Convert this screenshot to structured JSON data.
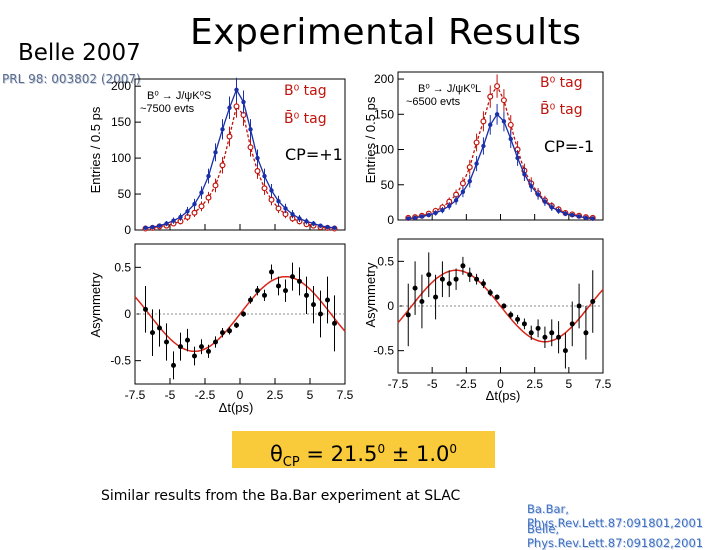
{
  "slide": {
    "title": "Experimental Results",
    "experiment": "Belle 2007",
    "reference_top": "PRL 98: 003802 (2007)",
    "result_text": "θCP = 21.50 ± 1.00",
    "result_theta": "θ",
    "result_sub": "CP",
    "result_eq": " = 21.5",
    "result_sup1": "0",
    "result_pm": " ± 1.0",
    "result_sup2": "0",
    "caption": "Similar results from the Ba.Bar experiment at SLAC",
    "references": [
      "Ba.Bar, Phys.Rev.Lett.87:091801,2001",
      "Belle, Phys.Rev.Lett.87:091802,2001"
    ]
  },
  "left_panel": {
    "decay": "B⁰ → J/ψK⁰S",
    "events": "~7500 evts",
    "tag1": "B⁰ tag",
    "tag2": "B̄⁰ tag",
    "cp_label": "CP=+1",
    "ylabel_top": "Entries / 0.5 ps",
    "ylabel_bottom": "Asymmetry",
    "xlabel": "Δt(ps)"
  },
  "right_panel": {
    "decay": "B⁰ → J/ψK⁰L",
    "events": "~6500 evts",
    "tag1": "B⁰ tag",
    "tag2": "B̄⁰ tag",
    "cp_label": "CP=-1",
    "ylabel_top": "Entries / 0.5 ps",
    "ylabel_bottom": "Asymmetry",
    "xlabel": "Δt(ps)"
  },
  "colors": {
    "b0_tag": "#c0140c",
    "b0bar_tag": "#1a2fa8",
    "highlight": "#f9cb3a",
    "reference": "#3e6fbf"
  },
  "chart_data": [
    {
      "type": "scatter",
      "name": "left-entries",
      "xlim": [
        -7.5,
        7.5
      ],
      "ylim": [
        0,
        210
      ],
      "yticks": [
        0,
        50,
        100,
        150,
        200
      ],
      "series": [
        {
          "name": "B⁰ tag",
          "color": "#c0140c",
          "x": [
            -6.75,
            -6.25,
            -5.75,
            -5.25,
            -4.75,
            -4.25,
            -3.75,
            -3.25,
            -2.75,
            -2.25,
            -1.75,
            -1.25,
            -0.75,
            -0.25,
            0.25,
            0.75,
            1.25,
            1.75,
            2.25,
            2.75,
            3.25,
            3.75,
            4.25,
            4.75,
            5.25,
            5.75,
            6.25,
            6.75
          ],
          "y": [
            2,
            3,
            5,
            6,
            9,
            12,
            18,
            24,
            33,
            45,
            62,
            90,
            130,
            172,
            160,
            115,
            82,
            58,
            42,
            30,
            22,
            16,
            12,
            8,
            6,
            4,
            3,
            2
          ]
        },
        {
          "name": "B̄⁰ tag",
          "color": "#1a2fa8",
          "x": [
            -6.75,
            -6.25,
            -5.75,
            -5.25,
            -4.75,
            -4.25,
            -3.75,
            -3.25,
            -2.75,
            -2.25,
            -1.75,
            -1.25,
            -0.75,
            -0.25,
            0.25,
            0.75,
            1.25,
            1.75,
            2.25,
            2.75,
            3.25,
            3.75,
            4.25,
            4.75,
            5.25,
            5.75,
            6.25,
            6.75
          ],
          "y": [
            3,
            4,
            6,
            9,
            13,
            18,
            26,
            36,
            52,
            75,
            108,
            140,
            170,
            195,
            178,
            140,
            100,
            75,
            55,
            40,
            30,
            22,
            16,
            12,
            9,
            6,
            4,
            3
          ]
        }
      ]
    },
    {
      "type": "scatter",
      "name": "left-asymmetry",
      "xlim": [
        -7.5,
        7.5
      ],
      "ylim": [
        -0.75,
        0.75
      ],
      "yticks": [
        -0.5,
        0,
        0.5
      ],
      "series": [
        {
          "name": "asymmetry",
          "x": [
            -6.75,
            -6.25,
            -5.75,
            -5.25,
            -4.75,
            -4.25,
            -3.75,
            -3.25,
            -2.75,
            -2.25,
            -1.75,
            -1.25,
            -0.75,
            -0.25,
            0.25,
            0.75,
            1.25,
            1.75,
            2.25,
            2.75,
            3.25,
            3.75,
            4.25,
            4.75,
            5.25,
            5.75,
            6.25,
            6.75
          ],
          "y": [
            0.05,
            -0.2,
            -0.15,
            -0.3,
            -0.55,
            -0.35,
            -0.28,
            -0.45,
            -0.35,
            -0.4,
            -0.3,
            -0.2,
            -0.18,
            -0.12,
            0.0,
            0.15,
            0.25,
            0.2,
            0.45,
            0.3,
            0.25,
            0.4,
            0.35,
            0.2,
            0.1,
            0.0,
            0.15,
            -0.1
          ],
          "err": [
            0.25,
            0.25,
            0.2,
            0.2,
            0.15,
            0.15,
            0.12,
            0.1,
            0.08,
            0.07,
            0.06,
            0.05,
            0.04,
            0.03,
            0.03,
            0.04,
            0.05,
            0.06,
            0.08,
            0.1,
            0.12,
            0.15,
            0.15,
            0.2,
            0.2,
            0.25,
            0.25,
            0.3
          ]
        }
      ]
    },
    {
      "type": "scatter",
      "name": "right-entries",
      "xlim": [
        -7.5,
        7.5
      ],
      "ylim": [
        0,
        210
      ],
      "yticks": [
        0,
        50,
        100,
        150,
        200
      ],
      "series": [
        {
          "name": "B⁰ tag",
          "color": "#c0140c",
          "x": [
            -6.75,
            -6.25,
            -5.75,
            -5.25,
            -4.75,
            -4.25,
            -3.75,
            -3.25,
            -2.75,
            -2.25,
            -1.75,
            -1.25,
            -0.75,
            -0.25,
            0.25,
            0.75,
            1.25,
            1.75,
            2.25,
            2.75,
            3.25,
            3.75,
            4.25,
            4.75,
            5.25,
            5.75,
            6.25,
            6.75
          ],
          "y": [
            3,
            4,
            6,
            9,
            13,
            18,
            26,
            36,
            52,
            75,
            110,
            140,
            175,
            190,
            170,
            135,
            100,
            70,
            52,
            38,
            28,
            20,
            15,
            10,
            8,
            6,
            4,
            3
          ]
        },
        {
          "name": "B̄⁰ tag",
          "color": "#1a2fa8",
          "x": [
            -6.75,
            -6.25,
            -5.75,
            -5.25,
            -4.75,
            -4.25,
            -3.75,
            -3.25,
            -2.75,
            -2.25,
            -1.75,
            -1.25,
            -0.75,
            -0.25,
            0.25,
            0.75,
            1.25,
            1.75,
            2.25,
            2.75,
            3.25,
            3.75,
            4.25,
            4.75,
            5.25,
            5.75,
            6.25,
            6.75
          ],
          "y": [
            2,
            3,
            5,
            7,
            10,
            14,
            20,
            28,
            40,
            55,
            80,
            105,
            135,
            150,
            140,
            115,
            88,
            65,
            48,
            36,
            26,
            18,
            13,
            9,
            7,
            5,
            3,
            2
          ]
        }
      ]
    },
    {
      "type": "scatter",
      "name": "right-asymmetry",
      "xlim": [
        -7.5,
        7.5
      ],
      "ylim": [
        -0.75,
        0.75
      ],
      "yticks": [
        -0.5,
        0,
        0.5
      ],
      "series": [
        {
          "name": "asymmetry",
          "x": [
            -6.75,
            -6.25,
            -5.75,
            -5.25,
            -4.75,
            -4.25,
            -3.75,
            -3.25,
            -2.75,
            -2.25,
            -1.75,
            -1.25,
            -0.75,
            -0.25,
            0.25,
            0.75,
            1.25,
            1.75,
            2.25,
            2.75,
            3.25,
            3.75,
            4.25,
            4.75,
            5.25,
            5.75,
            6.25,
            6.75
          ],
          "y": [
            -0.1,
            0.2,
            0.05,
            0.35,
            0.1,
            0.3,
            0.25,
            0.3,
            0.45,
            0.35,
            0.3,
            0.25,
            0.15,
            0.1,
            0.0,
            -0.1,
            -0.15,
            -0.2,
            -0.3,
            -0.25,
            -0.35,
            -0.3,
            -0.35,
            -0.5,
            -0.2,
            0.0,
            -0.3,
            0.05
          ],
          "err": [
            0.35,
            0.3,
            0.3,
            0.25,
            0.25,
            0.2,
            0.15,
            0.12,
            0.1,
            0.08,
            0.06,
            0.05,
            0.04,
            0.03,
            0.03,
            0.04,
            0.05,
            0.06,
            0.08,
            0.1,
            0.12,
            0.15,
            0.18,
            0.2,
            0.25,
            0.25,
            0.3,
            0.35
          ]
        }
      ]
    }
  ]
}
